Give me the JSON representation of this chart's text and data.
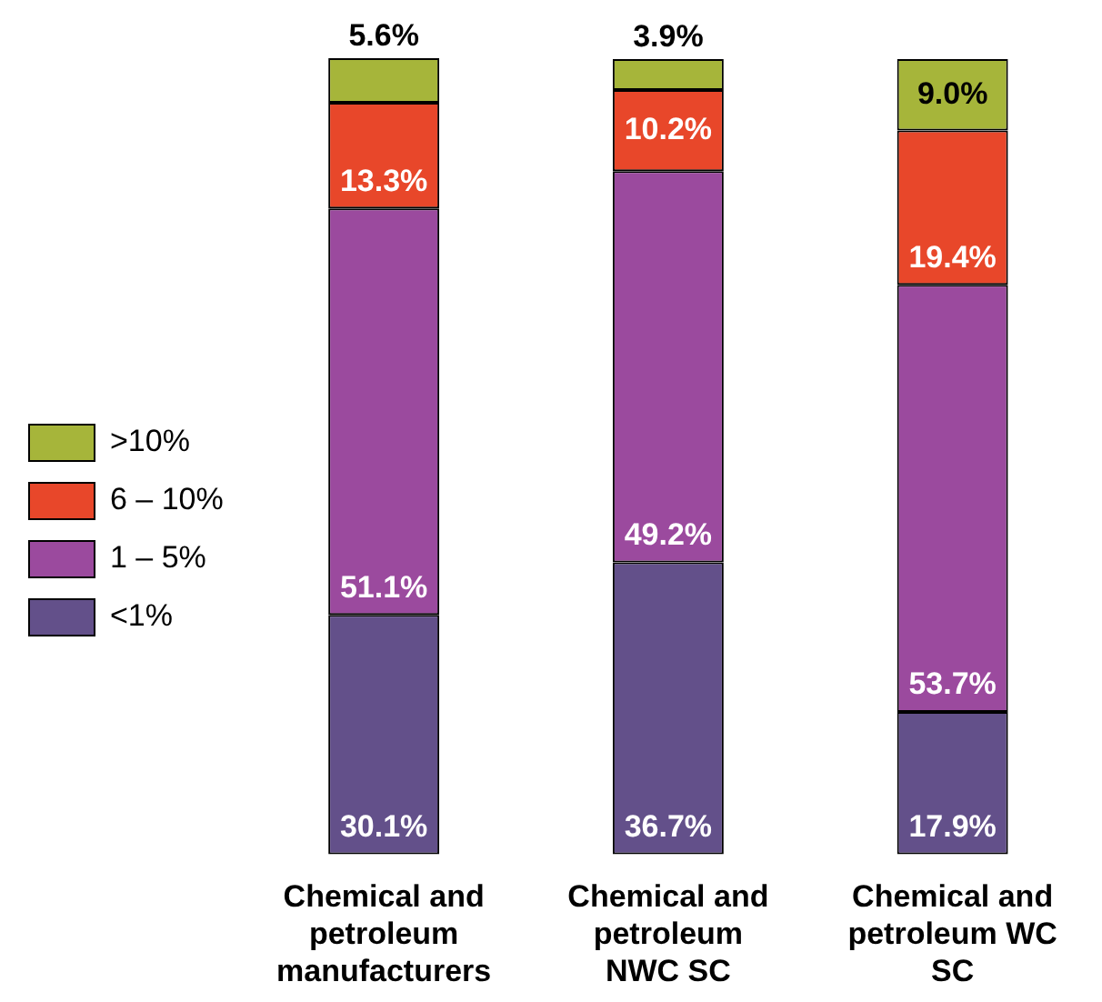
{
  "chart_data": {
    "type": "bar",
    "stacked": true,
    "tick_labels": "x",
    "legend": "left",
    "data_labels": true,
    "categories": [
      "Chemical and petroleum manufacturers",
      "Chemical and petroleum NWC SC",
      "Chemical and petroleum WC SC"
    ],
    "series": [
      {
        "name": "<1%",
        "color": "#63508a",
        "values": [
          30.1,
          36.7,
          17.9
        ],
        "value_labels": [
          "30.1%",
          "36.7%",
          "17.9%"
        ]
      },
      {
        "name": "1 – 5%",
        "color": "#9b4a9e",
        "values": [
          51.1,
          49.2,
          53.7
        ],
        "value_labels": [
          "51.1%",
          "49.2%",
          "53.7%"
        ]
      },
      {
        "name": "6 – 10%",
        "color": "#e8472a",
        "values": [
          13.3,
          10.2,
          19.4
        ],
        "value_labels": [
          "13.3%",
          "10.2%",
          "19.4%"
        ]
      },
      {
        "name": ">10%",
        "color": "#a6b53a",
        "values": [
          5.6,
          3.9,
          9.0
        ],
        "value_labels": [
          "5.6%",
          "3.9%",
          "9.0%"
        ]
      }
    ]
  }
}
